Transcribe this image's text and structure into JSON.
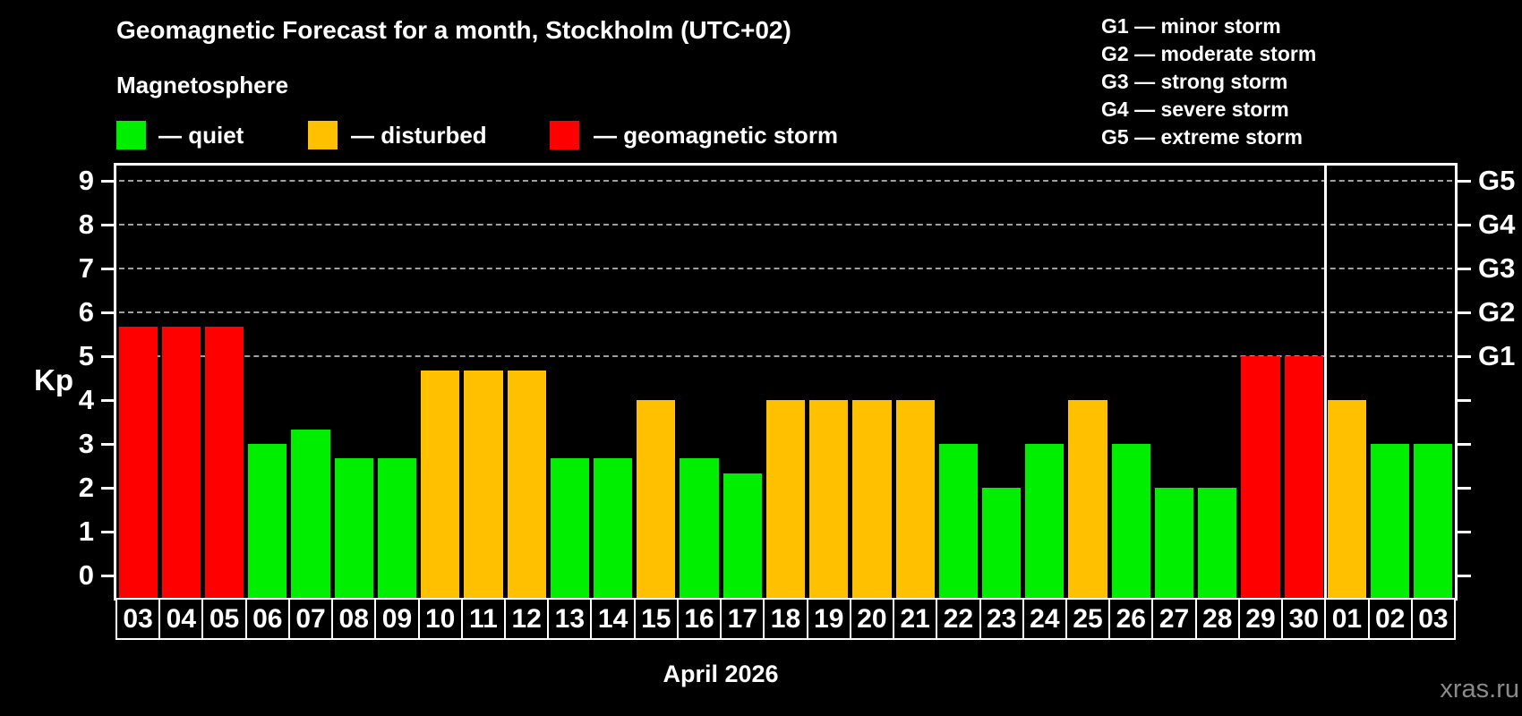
{
  "title": "Geomagnetic Forecast for a month, Stockholm (UTC+02)",
  "subtitle": "Magnetosphere",
  "legend": {
    "quiet_label": "— quiet",
    "disturbed_label": "— disturbed",
    "storm_label": "— geomagnetic storm"
  },
  "g_legend": [
    "G1 — minor storm",
    "G2 — moderate storm",
    "G3 — strong storm",
    "G4 — severe storm",
    "G5 — extreme storm"
  ],
  "colors": {
    "quiet": "#00ee00",
    "disturbed": "#ffc000",
    "storm": "#ff0000",
    "grid": "#a0a0a0",
    "axis": "#ffffff",
    "background": "#000000",
    "watermark": "#8a8a8a"
  },
  "axis": {
    "kp_label": "Kp",
    "tick_labels": [
      "0",
      "1",
      "2",
      "3",
      "4",
      "5",
      "6",
      "7",
      "8",
      "9"
    ],
    "g_labels": {
      "5": "G1",
      "6": "G2",
      "7": "G3",
      "8": "G4",
      "9": "G5"
    }
  },
  "month_label": "April 2026",
  "watermark": "xras.ru",
  "chart_data": {
    "type": "bar",
    "title": "Geomagnetic Forecast for a month, Stockholm (UTC+02)",
    "xlabel": "April 2026",
    "ylabel": "Kp",
    "ylim": [
      0,
      9
    ],
    "grid": "horizontal dashed lines at Kp 5,6,7,8,9 (G1-G5 storm levels)",
    "legend_position": "top-left (quiet/disturbed/storm), top-right (G1-G5)",
    "categories": [
      "03",
      "04",
      "05",
      "06",
      "07",
      "08",
      "09",
      "10",
      "11",
      "12",
      "13",
      "14",
      "15",
      "16",
      "17",
      "18",
      "19",
      "20",
      "21",
      "22",
      "23",
      "24",
      "25",
      "26",
      "27",
      "28",
      "29",
      "30",
      "01",
      "02",
      "03"
    ],
    "values": [
      5.67,
      5.67,
      5.67,
      3.0,
      3.33,
      2.67,
      2.67,
      4.67,
      4.67,
      4.67,
      2.67,
      2.67,
      4.0,
      2.67,
      2.33,
      4.0,
      4.0,
      4.0,
      4.0,
      3.0,
      2.0,
      3.0,
      4.0,
      3.0,
      2.0,
      2.0,
      5.0,
      5.0,
      4.0,
      3.0,
      3.0
    ],
    "statuses": [
      "storm",
      "storm",
      "storm",
      "quiet",
      "quiet",
      "quiet",
      "quiet",
      "disturbed",
      "disturbed",
      "disturbed",
      "quiet",
      "quiet",
      "disturbed",
      "quiet",
      "quiet",
      "disturbed",
      "disturbed",
      "disturbed",
      "disturbed",
      "quiet",
      "quiet",
      "quiet",
      "disturbed",
      "quiet",
      "quiet",
      "quiet",
      "storm",
      "storm",
      "disturbed",
      "quiet",
      "quiet"
    ],
    "gridline_values": [
      5,
      6,
      7,
      8,
      9
    ],
    "month_separator_after_index": 27
  }
}
